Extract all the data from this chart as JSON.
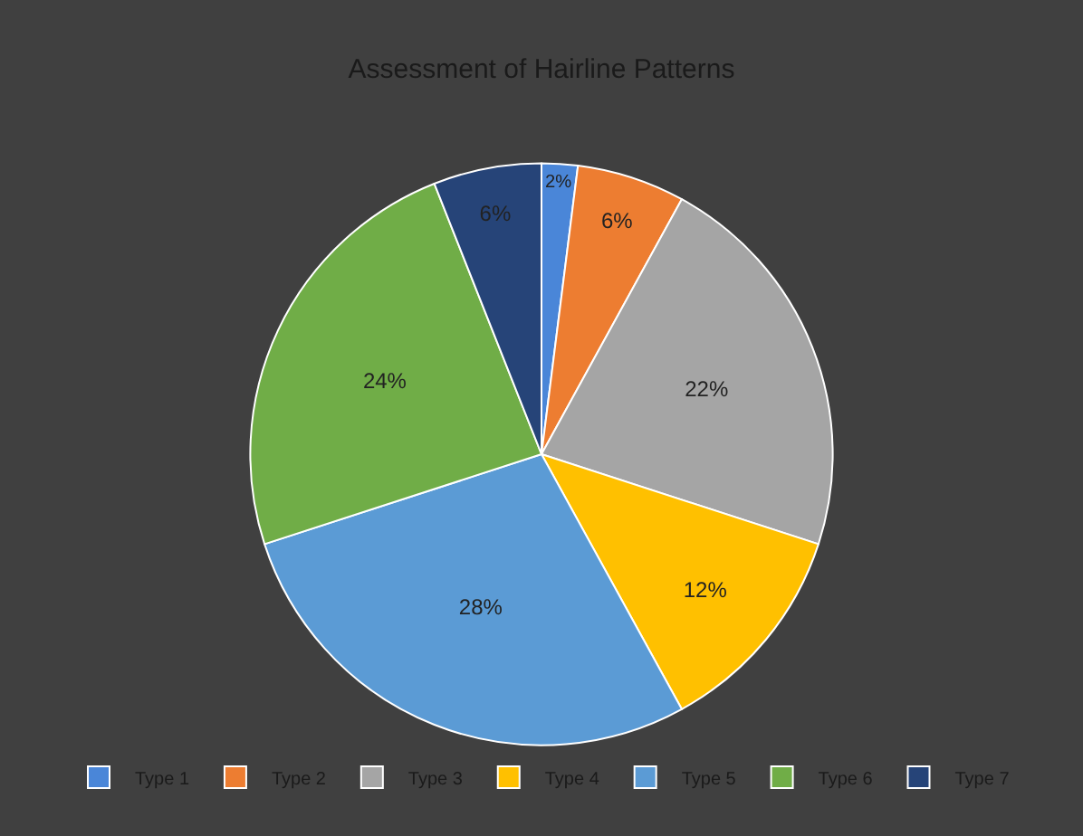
{
  "chart_data": {
    "type": "pie",
    "title": "Assessment of Hairline Patterns",
    "categories": [
      "Type 1",
      "Type 2",
      "Type 3",
      "Type 4",
      "Type 5",
      "Type 6",
      "Type 7"
    ],
    "values": [
      2,
      6,
      22,
      12,
      28,
      24,
      6
    ],
    "colors": [
      "#4a86d8",
      "#ed7d31",
      "#a5a5a5",
      "#ffc000",
      "#5b9bd5",
      "#70ad47",
      "#264478"
    ],
    "value_labels": [
      "2%",
      "6%",
      "22%",
      "12%",
      "28%",
      "24%",
      "6%"
    ],
    "legend": "bottom"
  }
}
